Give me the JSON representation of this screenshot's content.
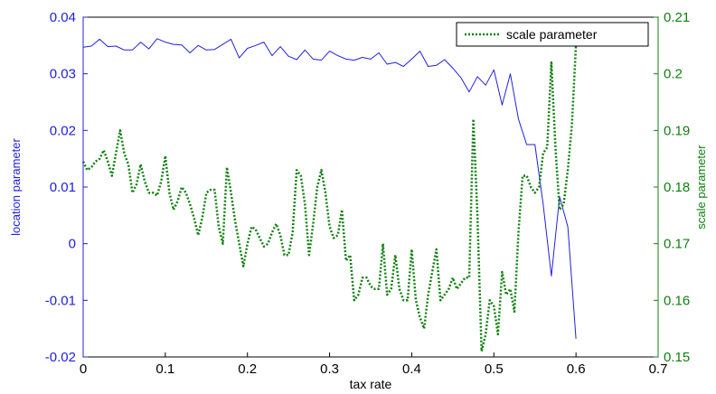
{
  "chart_data": {
    "type": "line",
    "xlabel": "tax rate",
    "ylabel": "location parameter",
    "ylabel_right": "scale parameter",
    "xlim": [
      0,
      0.7
    ],
    "ylim": [
      -0.02,
      0.04
    ],
    "ylim_right": [
      0.15,
      0.21
    ],
    "x_ticks": [
      "0",
      "0.1",
      "0.2",
      "0.3",
      "0.4",
      "0.5",
      "0.6",
      "0.7"
    ],
    "y_ticks": [
      "-0.02",
      "-0.01",
      "0",
      "0.01",
      "0.02",
      "0.03",
      "0.04"
    ],
    "y_ticks_right": [
      "0.15",
      "0.16",
      "0.17",
      "0.18",
      "0.19",
      "0.2",
      "0.21"
    ],
    "grid": false,
    "legend_position": "top-right",
    "colors": {
      "location": "#2020e0",
      "scale": "#108010",
      "axis": "#000000"
    },
    "series": [
      {
        "axis": "left",
        "style": "solid",
        "x": [
          0,
          0.01,
          0.02,
          0.03,
          0.04,
          0.05,
          0.06,
          0.07,
          0.08,
          0.09,
          0.1,
          0.11,
          0.12,
          0.13,
          0.14,
          0.15,
          0.16,
          0.17,
          0.18,
          0.19,
          0.2,
          0.21,
          0.22,
          0.23,
          0.24,
          0.25,
          0.26,
          0.27,
          0.28,
          0.29,
          0.3,
          0.31,
          0.32,
          0.33,
          0.34,
          0.35,
          0.36,
          0.37,
          0.38,
          0.39,
          0.4,
          0.41,
          0.42,
          0.43,
          0.44,
          0.45,
          0.46,
          0.47,
          0.48,
          0.49,
          0.5,
          0.51,
          0.52,
          0.53,
          0.54,
          0.55,
          0.56,
          0.57,
          0.58,
          0.59,
          0.6
        ],
        "values": [
          0.0347,
          0.0349,
          0.0361,
          0.0348,
          0.0349,
          0.0342,
          0.0342,
          0.0356,
          0.0344,
          0.0362,
          0.0356,
          0.0352,
          0.0351,
          0.0337,
          0.035,
          0.0342,
          0.0343,
          0.0352,
          0.0361,
          0.0328,
          0.0345,
          0.035,
          0.0356,
          0.0332,
          0.0348,
          0.0331,
          0.0325,
          0.0342,
          0.0326,
          0.0324,
          0.034,
          0.0332,
          0.0326,
          0.0324,
          0.0329,
          0.0326,
          0.0337,
          0.0317,
          0.032,
          0.0313,
          0.0326,
          0.034,
          0.0313,
          0.0315,
          0.0325,
          0.031,
          0.0293,
          0.0268,
          0.0295,
          0.028,
          0.0307,
          0.0245,
          0.03,
          0.022,
          0.0175,
          0.0175,
          0.007,
          -0.0057,
          0.0083,
          0.003,
          -0.0168
        ]
      },
      {
        "name": "scale parameter",
        "axis": "right",
        "style": "dotted",
        "x": [
          0,
          0.005,
          0.01,
          0.015,
          0.02,
          0.025,
          0.03,
          0.035,
          0.04,
          0.045,
          0.05,
          0.055,
          0.06,
          0.065,
          0.07,
          0.075,
          0.08,
          0.085,
          0.09,
          0.095,
          0.1,
          0.105,
          0.11,
          0.115,
          0.12,
          0.125,
          0.13,
          0.135,
          0.14,
          0.145,
          0.15,
          0.155,
          0.16,
          0.165,
          0.17,
          0.175,
          0.18,
          0.185,
          0.19,
          0.195,
          0.2,
          0.205,
          0.21,
          0.215,
          0.22,
          0.225,
          0.23,
          0.235,
          0.24,
          0.245,
          0.25,
          0.255,
          0.26,
          0.265,
          0.27,
          0.275,
          0.28,
          0.285,
          0.29,
          0.295,
          0.3,
          0.305,
          0.31,
          0.315,
          0.32,
          0.325,
          0.33,
          0.335,
          0.34,
          0.345,
          0.35,
          0.355,
          0.36,
          0.365,
          0.37,
          0.375,
          0.38,
          0.385,
          0.39,
          0.395,
          0.4,
          0.405,
          0.41,
          0.415,
          0.42,
          0.425,
          0.43,
          0.435,
          0.44,
          0.445,
          0.45,
          0.455,
          0.46,
          0.465,
          0.47,
          0.475,
          0.48,
          0.485,
          0.49,
          0.495,
          0.5,
          0.505,
          0.51,
          0.515,
          0.52,
          0.525,
          0.53,
          0.535,
          0.54,
          0.545,
          0.55,
          0.555,
          0.56,
          0.565,
          0.57,
          0.575,
          0.58,
          0.585,
          0.59,
          0.595,
          0.6
        ],
        "values": [
          0.1845,
          0.183,
          0.1835,
          0.1845,
          0.185,
          0.1865,
          0.1845,
          0.182,
          0.186,
          0.19,
          0.186,
          0.184,
          0.179,
          0.1805,
          0.184,
          0.181,
          0.179,
          0.179,
          0.1785,
          0.181,
          0.1855,
          0.179,
          0.176,
          0.1775,
          0.18,
          0.179,
          0.177,
          0.1745,
          0.1715,
          0.1745,
          0.179,
          0.1795,
          0.1795,
          0.173,
          0.17,
          0.1835,
          0.179,
          0.174,
          0.17,
          0.166,
          0.17,
          0.173,
          0.1725,
          0.171,
          0.1695,
          0.17,
          0.172,
          0.1735,
          0.1715,
          0.168,
          0.168,
          0.172,
          0.183,
          0.182,
          0.177,
          0.168,
          0.1735,
          0.18,
          0.183,
          0.179,
          0.173,
          0.171,
          0.1715,
          0.176,
          0.167,
          0.168,
          0.16,
          0.161,
          0.164,
          0.164,
          0.1625,
          0.162,
          0.162,
          0.17,
          0.161,
          0.162,
          0.168,
          0.162,
          0.16,
          0.16,
          0.169,
          0.16,
          0.157,
          0.155,
          0.161,
          0.165,
          0.169,
          0.16,
          0.161,
          0.162,
          0.164,
          0.162,
          0.163,
          0.164,
          0.164,
          0.192,
          0.175,
          0.151,
          0.154,
          0.16,
          0.159,
          0.154,
          0.165,
          0.161,
          0.162,
          0.158,
          0.172,
          0.182,
          0.182,
          0.18,
          0.179,
          0.18,
          0.186,
          0.187,
          0.202,
          0.187,
          0.176,
          0.177,
          0.183,
          0.191,
          0.205
        ]
      }
    ]
  }
}
